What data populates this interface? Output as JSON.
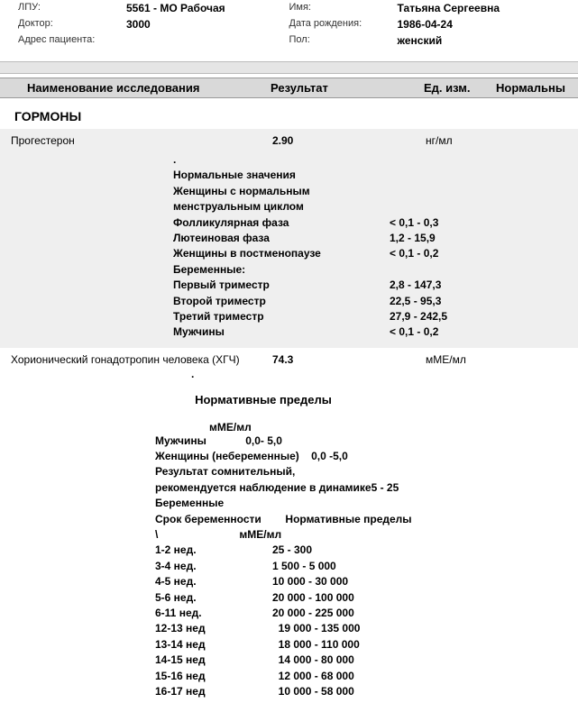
{
  "header": {
    "left": [
      {
        "label": "ЛПУ:",
        "value": "5561 - МО Рабочая"
      },
      {
        "label": "Доктор:",
        "value": "3000"
      },
      {
        "label": "Адрес пациента:",
        "value": ""
      }
    ],
    "right": [
      {
        "label": "Имя:",
        "value": "Татьяна Сергеевна"
      },
      {
        "label": "Дата рождения:",
        "value": "1986-04-24"
      },
      {
        "label": "Пол:",
        "value": "женский"
      }
    ]
  },
  "columns": {
    "name": "Наименование исследования",
    "result": "Результат",
    "unit": "Ед. изм.",
    "norm": "Нормальны"
  },
  "section": "ГОРМОНЫ",
  "test1": {
    "name": "Прогестерон",
    "result": "2.90",
    "unit": "нг/мл",
    "ref_title": "Нормальные значения",
    "ref_lines": [
      {
        "label": "Женщины с нормальным менструальным циклом",
        "range": ""
      },
      {
        "label": "Фолликулярная фаза",
        "range": "< 0,1 - 0,3"
      },
      {
        "label": "Лютеиновая фаза",
        "range": "1,2 - 15,9"
      },
      {
        "label": "Женщины в постменопаузе",
        "range": " < 0,1 - 0,2"
      },
      {
        "label": "Беременные:",
        "range": ""
      },
      {
        "label": "Первый триместр",
        "range": " 2,8 - 147,3"
      },
      {
        "label": "Второй триместр",
        "range": "22,5 - 95,3"
      },
      {
        "label": "Третий триместр",
        "range": "27,9 - 242,5"
      },
      {
        "label": "Мужчины",
        "range": "< 0,1 - 0,2"
      }
    ]
  },
  "test2": {
    "name": "Хорионический гонадотропин человека (ХГЧ)",
    "result": "74.3",
    "unit": "мМЕ/мл",
    "norm_title": "Нормативные пределы",
    "norm_unit": "мМЕ/мл",
    "lines": [
      "Мужчины             0,0- 5,0",
      "Женщины (небеременные)    0,0 -5,0",
      "Результат сомнительный,",
      "рекомендуется наблюдение в динамике5 - 25",
      "Беременные",
      "Срок беременности        Нормативные пределы"
    ],
    "col_header": "\\                           мМЕ/мл",
    "weeks": [
      {
        "label": "1-2 нед.",
        "range": "25 - 300"
      },
      {
        "label": "3-4 нед.",
        "range": "1 500 - 5 000"
      },
      {
        "label": "4-5 нед.",
        "range": "10 000 - 30 000"
      },
      {
        "label": "5-6 нед.",
        "range": "20 000 - 100 000"
      },
      {
        "label": "6-11 нед.",
        "range": "20 000 - 225 000"
      },
      {
        "label": "12-13 нед",
        "range": "  19 000 - 135 000"
      },
      {
        "label": "13-14 нед",
        "range": "  18 000 - 110 000"
      },
      {
        "label": "14-15 нед",
        "range": "  14 000 - 80 000"
      },
      {
        "label": "15-16 нед",
        "range": "  12 000 - 68 000"
      },
      {
        "label": "16-17 нед",
        "range": "  10 000 - 58 000"
      }
    ]
  }
}
